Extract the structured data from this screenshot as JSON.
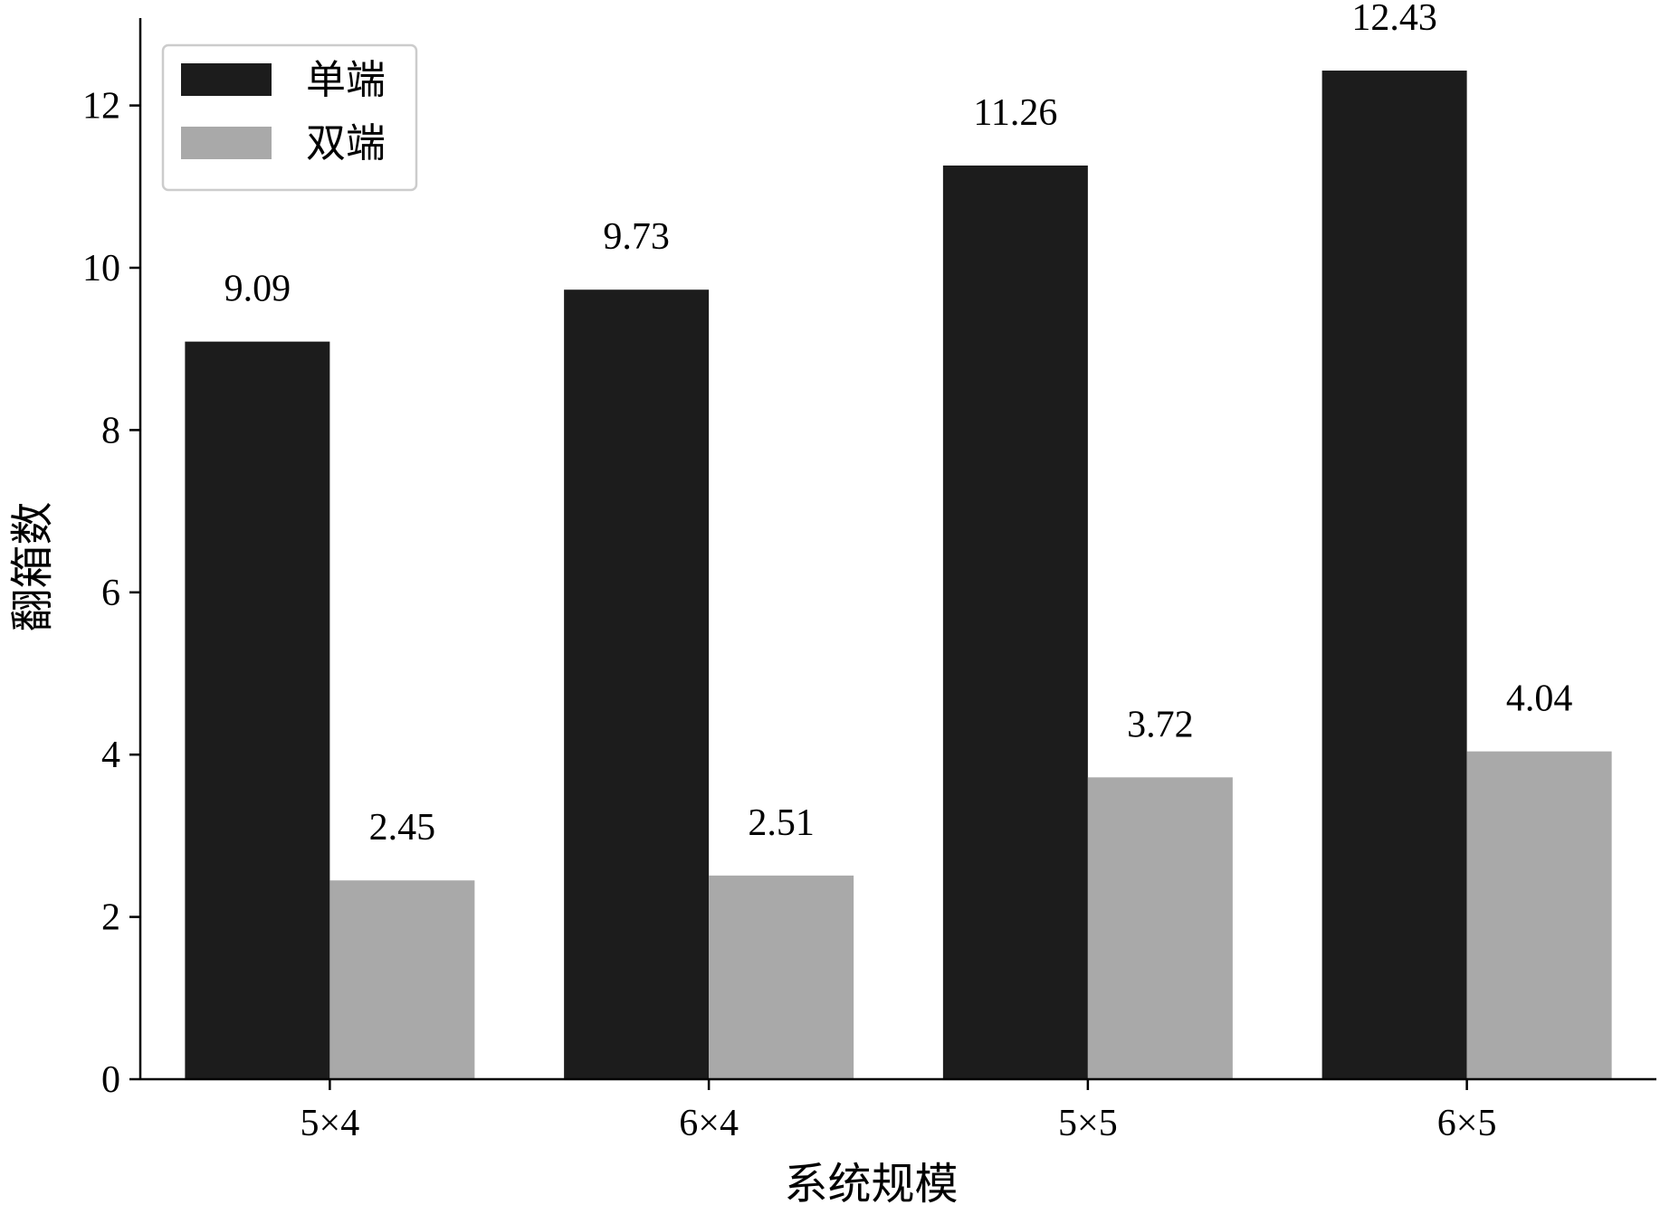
{
  "chart_data": {
    "type": "bar",
    "categories": [
      "5×4",
      "6×4",
      "5×5",
      "6×5"
    ],
    "series": [
      {
        "name": "单端",
        "values": [
          9.09,
          9.73,
          11.26,
          12.43
        ],
        "labels": [
          "9.09",
          "9.73",
          "11.26",
          "12.43"
        ],
        "color": "#1c1c1c"
      },
      {
        "name": "双端",
        "values": [
          2.45,
          2.51,
          3.72,
          4.04
        ],
        "labels": [
          "2.45",
          "2.51",
          "3.72",
          "4.04"
        ],
        "color": "#a9a9a9"
      }
    ],
    "title": "",
    "xlabel": "系统规模",
    "ylabel": "翻箱数",
    "ylim": [
      0,
      13
    ],
    "yticks": [
      0,
      2,
      4,
      6,
      8,
      10,
      12
    ],
    "ytick_labels": [
      "0",
      "2",
      "4",
      "6",
      "8",
      "10",
      "12"
    ],
    "grid": false,
    "legend_position": "top-left"
  }
}
